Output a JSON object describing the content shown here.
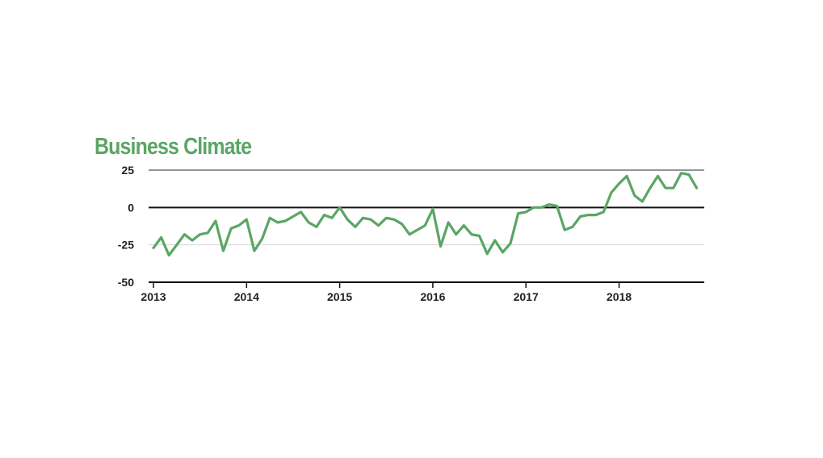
{
  "chart_data": {
    "type": "line",
    "title": "Business Climate",
    "xlabel": "",
    "ylabel": "",
    "ylim": [
      -50,
      25
    ],
    "yticks": [
      25,
      0,
      -25,
      -50
    ],
    "ytick_labels": [
      "25",
      "0",
      "-25",
      "-50"
    ],
    "xticks": [
      "2013",
      "2014",
      "2015",
      "2016",
      "2017",
      "2018"
    ],
    "grid": "horizontal",
    "x_start": "2013-01",
    "x_step": "monthly",
    "series": [
      {
        "values": [
          -27,
          -20,
          -32,
          -25,
          -18,
          -22,
          -18,
          -17,
          -9,
          -29,
          -14,
          -12,
          -8,
          -29,
          -21,
          -7,
          -10,
          -9,
          -6,
          -3,
          -10,
          -13,
          -5,
          -7,
          0,
          -8,
          -13,
          -7,
          -8,
          -12,
          -7,
          -8,
          -11,
          -18,
          -15,
          -12,
          -1,
          -26,
          -10,
          -18,
          -12,
          -18,
          -19,
          -31,
          -22,
          -30,
          -24,
          -4,
          -3,
          0,
          0,
          2,
          1,
          -15,
          -13,
          -6,
          -5,
          -5,
          -3,
          10,
          16,
          21,
          8,
          4,
          13,
          21,
          13,
          13,
          23,
          22,
          13
        ],
        "color": "#5aa664"
      }
    ]
  }
}
